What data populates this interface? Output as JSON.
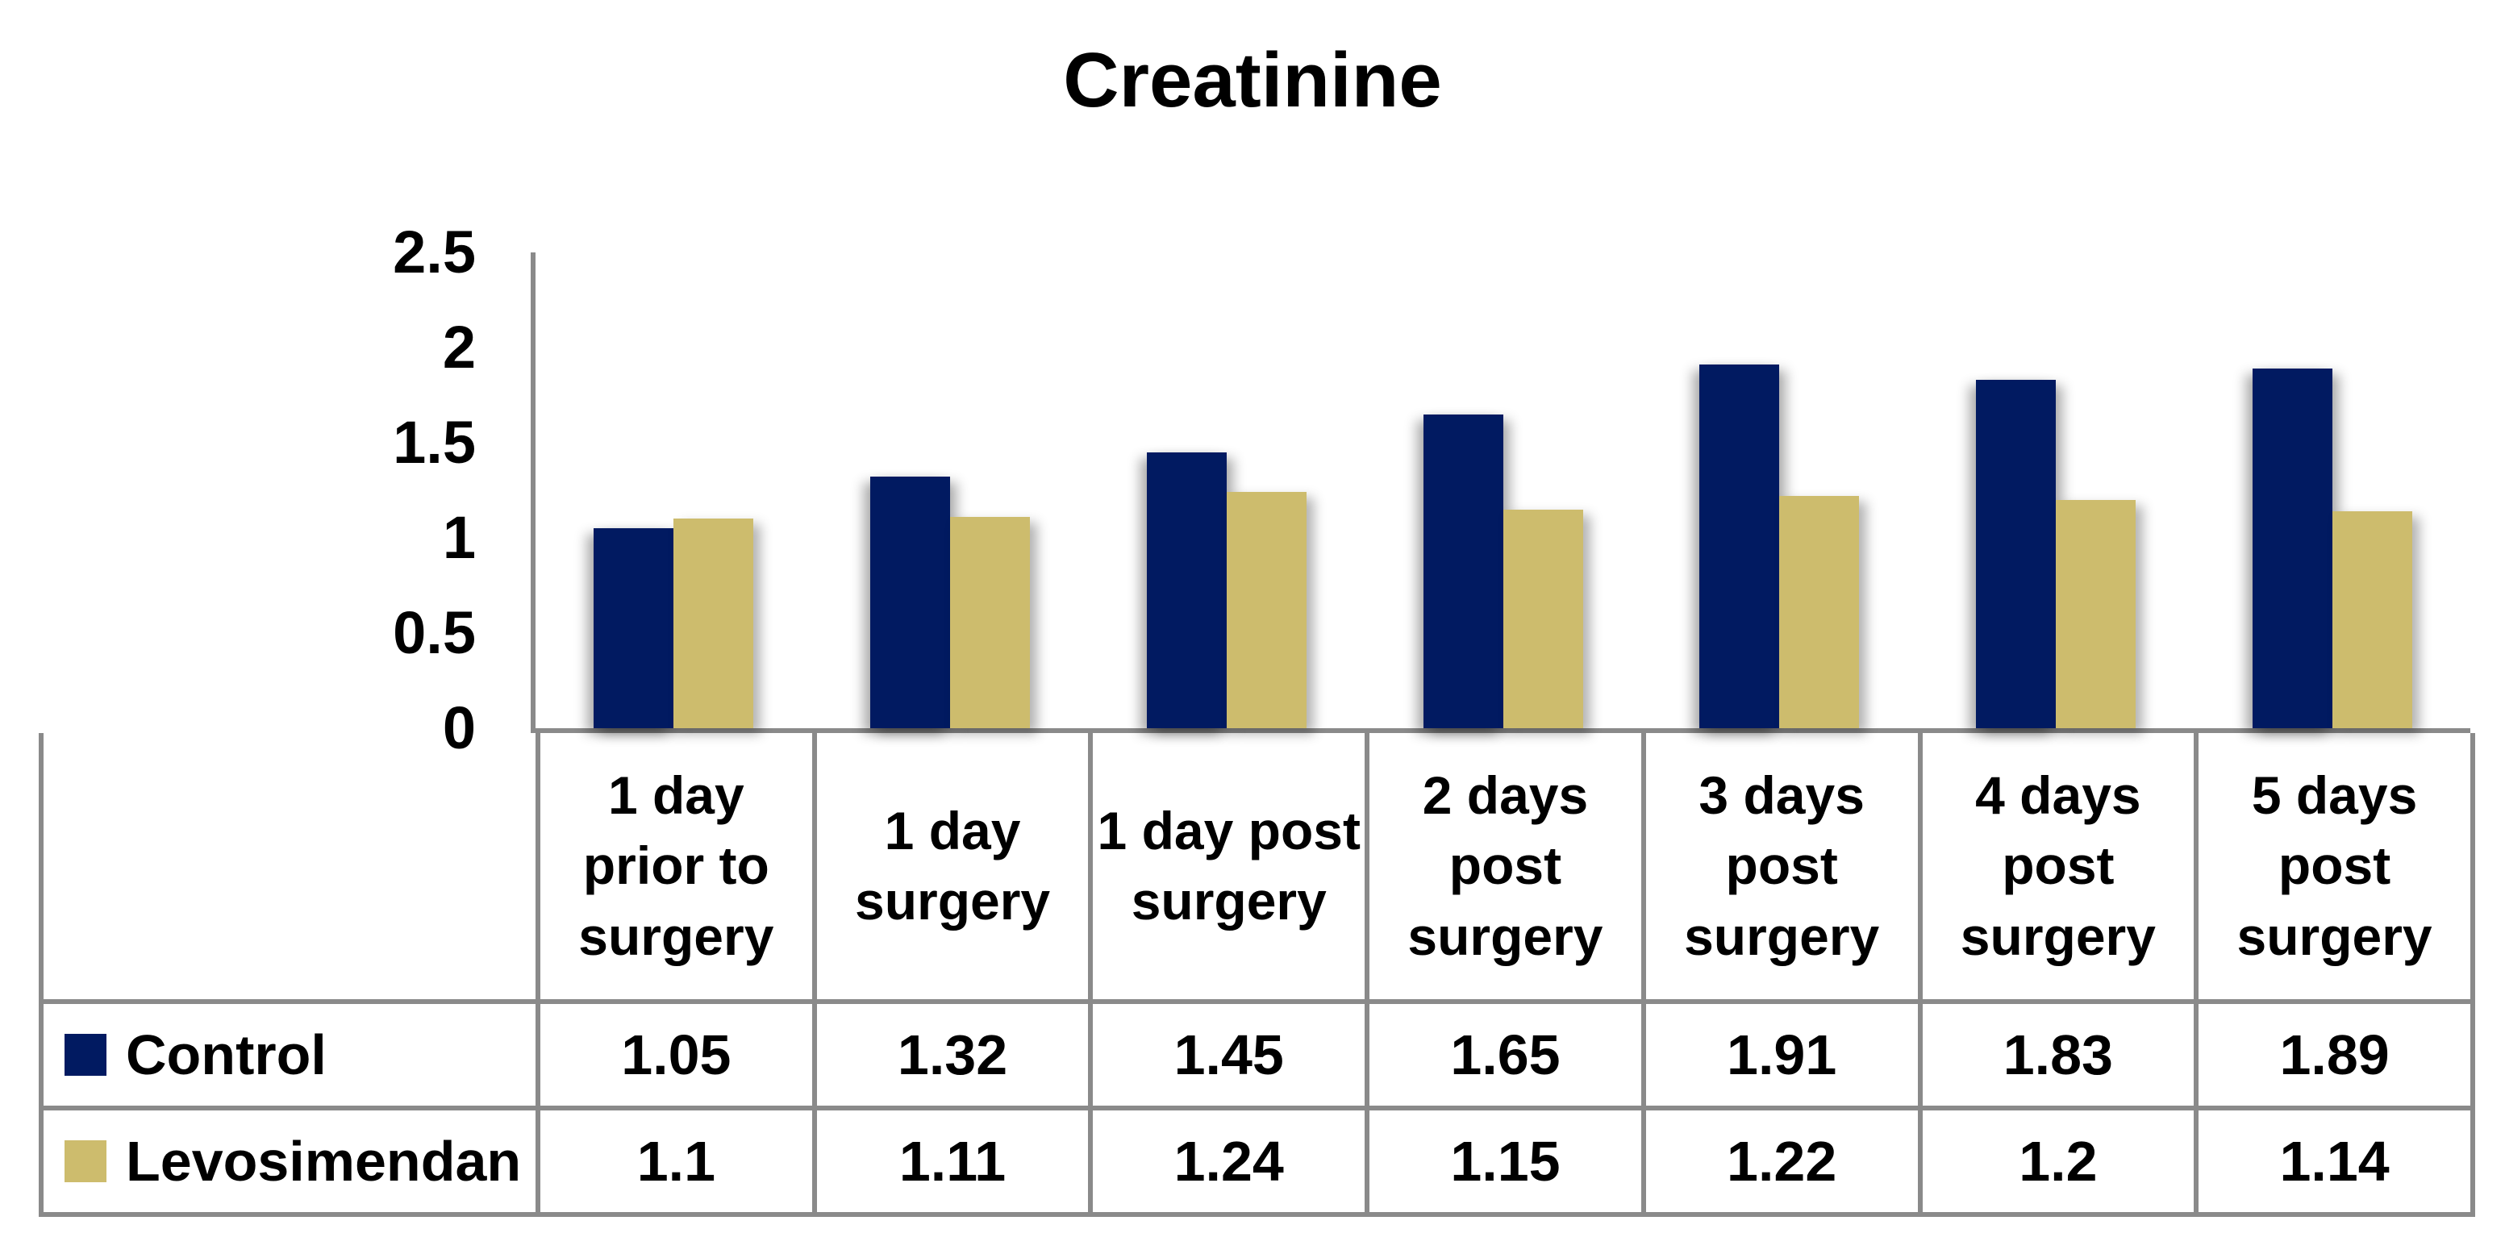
{
  "title": "Creatinine",
  "colors": {
    "control": "#011A61",
    "levosimendan": "#CDBC6D",
    "line_gray": "#8A8A8A",
    "text": "#000000",
    "background": "#FFFFFF"
  },
  "chart_data": {
    "type": "bar",
    "title": "Creatinine",
    "categories": [
      "1 day prior to surgery",
      "1 day surgery",
      "1 day post surgery",
      "2 days post surgery",
      "3 days post surgery",
      "4 days post surgery",
      "5 days post surgery"
    ],
    "series": [
      {
        "name": "Control",
        "color_key": "control",
        "values": [
          1.05,
          1.32,
          1.45,
          1.65,
          1.91,
          1.83,
          1.89
        ]
      },
      {
        "name": "Levosimendan",
        "color_key": "levosimendan",
        "values": [
          1.1,
          1.11,
          1.24,
          1.15,
          1.22,
          1.2,
          1.14
        ]
      }
    ],
    "value_labels": [
      [
        "1.05",
        "1.32",
        "1.45",
        "1.65",
        "1.91",
        "1.83",
        "1.89"
      ],
      [
        "1.1",
        "1.11",
        "1.24",
        "1.15",
        "1.22",
        "1.2",
        "1.14"
      ]
    ],
    "ylim": [
      0,
      2.5
    ],
    "yticks": [
      "0",
      "0.5",
      "1",
      "1.5",
      "2",
      "2.5"
    ],
    "grid": "off",
    "legend_position": "table-left-column",
    "xlabel": "",
    "ylabel": ""
  }
}
